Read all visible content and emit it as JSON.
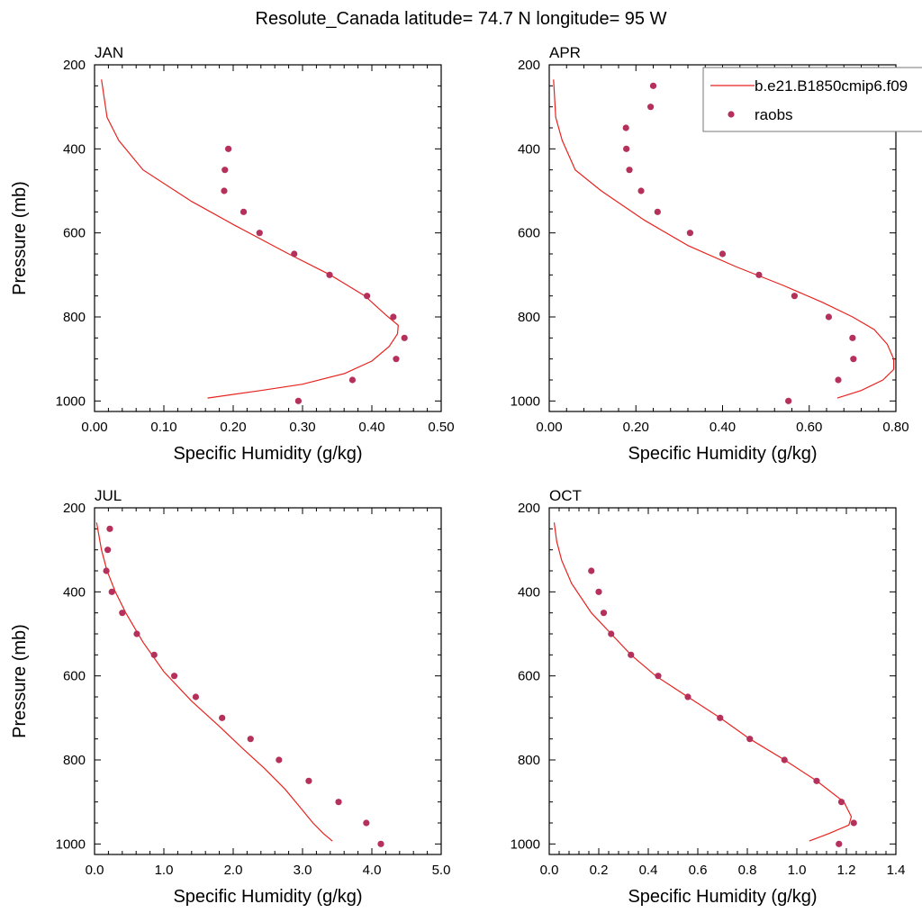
{
  "title": "Resolute_Canada  latitude= 74.7 N longitude= 95 W",
  "legend": {
    "model_label": "b.e21.B1850cmip6.f09",
    "obs_label": "raobs",
    "model_color": "#e8231f",
    "obs_color": "#b5305a",
    "placement": "top-right (over APR panel)"
  },
  "chart_data": [
    {
      "type": "line",
      "panel": "JAN",
      "title": "JAN",
      "xlabel": "Specific Humidity (g/kg)",
      "ylabel": "Pressure (mb)",
      "xlim": [
        0,
        0.5
      ],
      "ylim": [
        1025,
        200
      ],
      "y_reversed": true,
      "xticks": [
        "0.00",
        "0.10",
        "0.20",
        "0.30",
        "0.40",
        "0.50"
      ],
      "xtick_values": [
        0,
        0.1,
        0.2,
        0.3,
        0.4,
        0.5
      ],
      "yticks": [
        "200",
        "400",
        "600",
        "800",
        "1000"
      ],
      "ytick_values": [
        200,
        400,
        600,
        800,
        1000
      ],
      "series": [
        {
          "name": "b.e21.B1850cmip6.f09",
          "kind": "line",
          "x": [
            0.163,
            0.24,
            0.3,
            0.36,
            0.4,
            0.425,
            0.437,
            0.438,
            0.42,
            0.39,
            0.34,
            0.28,
            0.2,
            0.14,
            0.07,
            0.035,
            0.018,
            0.01
          ],
          "y": [
            993,
            975,
            960,
            935,
            905,
            870,
            840,
            820,
            795,
            750,
            700,
            650,
            580,
            525,
            450,
            380,
            325,
            235
          ]
        },
        {
          "name": "raobs",
          "kind": "scatter",
          "x": [
            0.193,
            0.188,
            0.187,
            0.215,
            0.238,
            0.288,
            0.339,
            0.393,
            0.431,
            0.447,
            0.435,
            0.372,
            0.294
          ],
          "y": [
            400,
            450,
            500,
            550,
            600,
            650,
            700,
            750,
            800,
            850,
            900,
            950,
            1000
          ]
        }
      ]
    },
    {
      "type": "line",
      "panel": "APR",
      "title": "APR",
      "xlabel": "Specific Humidity (g/kg)",
      "ylabel": "",
      "xlim": [
        0,
        0.8
      ],
      "ylim": [
        1025,
        200
      ],
      "y_reversed": true,
      "xticks": [
        "0.00",
        "0.20",
        "0.40",
        "0.60",
        "0.80"
      ],
      "xtick_values": [
        0,
        0.2,
        0.4,
        0.6,
        0.8
      ],
      "yticks": [
        "200",
        "400",
        "600",
        "800",
        "1000"
      ],
      "ytick_values": [
        200,
        400,
        600,
        800,
        1000
      ],
      "series": [
        {
          "name": "b.e21.B1850cmip6.f09",
          "kind": "line",
          "x": [
            0.665,
            0.72,
            0.77,
            0.795,
            0.795,
            0.78,
            0.75,
            0.7,
            0.63,
            0.54,
            0.43,
            0.32,
            0.22,
            0.12,
            0.06,
            0.03,
            0.015,
            0.01
          ],
          "y": [
            993,
            975,
            950,
            925,
            900,
            865,
            830,
            800,
            765,
            725,
            680,
            630,
            570,
            500,
            450,
            380,
            325,
            235
          ]
        },
        {
          "name": "raobs",
          "kind": "scatter",
          "x": [
            0.24,
            0.234,
            0.177,
            0.178,
            0.185,
            0.212,
            0.25,
            0.325,
            0.4,
            0.484,
            0.566,
            0.645,
            0.7,
            0.702,
            0.667,
            0.552
          ],
          "y": [
            250,
            300,
            350,
            400,
            450,
            500,
            550,
            600,
            650,
            700,
            750,
            800,
            850,
            900,
            950,
            1000
          ]
        }
      ]
    },
    {
      "type": "line",
      "panel": "JUL",
      "title": "JUL",
      "xlabel": "Specific Humidity (g/kg)",
      "ylabel": "Pressure (mb)",
      "xlim": [
        0,
        5.0
      ],
      "ylim": [
        1025,
        200
      ],
      "y_reversed": true,
      "xticks": [
        "0.0",
        "1.0",
        "2.0",
        "3.0",
        "4.0",
        "5.0"
      ],
      "xtick_values": [
        0,
        1,
        2,
        3,
        4,
        5
      ],
      "yticks": [
        "200",
        "400",
        "600",
        "800",
        "1000"
      ],
      "ytick_values": [
        200,
        400,
        600,
        800,
        1000
      ],
      "series": [
        {
          "name": "b.e21.B1850cmip6.f09",
          "kind": "line",
          "x": [
            3.43,
            3.3,
            3.15,
            2.95,
            2.75,
            2.45,
            2.15,
            1.8,
            1.4,
            1.0,
            0.7,
            0.45,
            0.3,
            0.18,
            0.1,
            0.03
          ],
          "y": [
            993,
            975,
            950,
            910,
            870,
            820,
            775,
            720,
            660,
            590,
            520,
            450,
            400,
            350,
            300,
            235
          ]
        },
        {
          "name": "raobs",
          "kind": "scatter",
          "x": [
            0.22,
            0.19,
            0.17,
            0.25,
            0.4,
            0.61,
            0.86,
            1.15,
            1.46,
            1.84,
            2.25,
            2.66,
            3.09,
            3.52,
            3.92,
            4.13
          ],
          "y": [
            250,
            300,
            350,
            400,
            450,
            500,
            550,
            600,
            650,
            700,
            750,
            800,
            850,
            900,
            950,
            1000
          ]
        }
      ]
    },
    {
      "type": "line",
      "panel": "OCT",
      "title": "OCT",
      "xlabel": "Specific Humidity (g/kg)",
      "ylabel": "",
      "xlim": [
        0,
        1.4
      ],
      "ylim": [
        1025,
        200
      ],
      "y_reversed": true,
      "xticks": [
        "0.0",
        "0.2",
        "0.4",
        "0.6",
        "0.8",
        "1.0",
        "1.2",
        "1.4"
      ],
      "xtick_values": [
        0,
        0.2,
        0.4,
        0.6,
        0.8,
        1.0,
        1.2,
        1.4
      ],
      "yticks": [
        "200",
        "400",
        "600",
        "800",
        "1000"
      ],
      "ytick_values": [
        200,
        400,
        600,
        800,
        1000
      ],
      "series": [
        {
          "name": "b.e21.B1850cmip6.f09",
          "kind": "line",
          "x": [
            1.05,
            1.13,
            1.21,
            1.22,
            1.19,
            1.08,
            0.95,
            0.81,
            0.69,
            0.56,
            0.43,
            0.33,
            0.25,
            0.17,
            0.09,
            0.05,
            0.03,
            0.02
          ],
          "y": [
            993,
            975,
            955,
            935,
            900,
            850,
            800,
            750,
            700,
            650,
            600,
            550,
            500,
            450,
            380,
            325,
            280,
            235
          ]
        },
        {
          "name": "raobs",
          "kind": "scatter",
          "x": [
            0.17,
            0.2,
            0.22,
            0.25,
            0.33,
            0.44,
            0.56,
            0.69,
            0.81,
            0.95,
            1.08,
            1.18,
            1.23,
            1.17
          ],
          "y": [
            350,
            400,
            450,
            500,
            550,
            600,
            650,
            700,
            750,
            800,
            850,
            900,
            950,
            1000
          ]
        }
      ]
    }
  ]
}
